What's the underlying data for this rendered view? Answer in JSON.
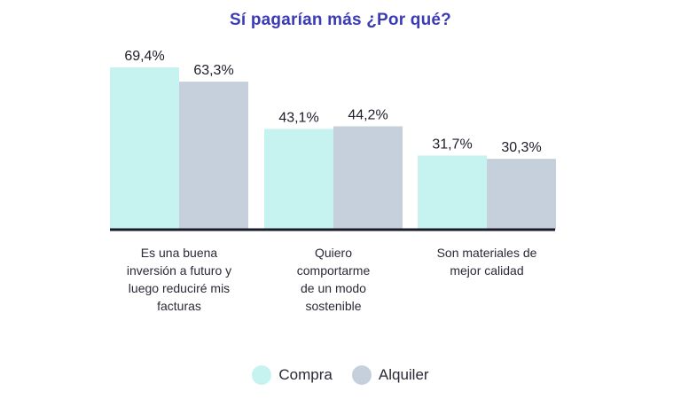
{
  "chart_data": {
    "type": "bar",
    "title": "Sí pagarían más ¿Por qué?",
    "categories": [
      [
        "Es una buena",
        "inversión a futuro y",
        "luego reduciré mis",
        "facturas"
      ],
      [
        "Quiero",
        "comportarme",
        "de un modo",
        "sostenible"
      ],
      [
        "Son materiales de",
        "mejor calidad"
      ]
    ],
    "series": [
      {
        "name": "Compra",
        "values": [
          69.4,
          43.1,
          31.7
        ],
        "labels": [
          "69,4%",
          "43,1%",
          "31,7%"
        ],
        "color": "#c6f3ef"
      },
      {
        "name": "Alquiler",
        "values": [
          63.3,
          44.2,
          30.3
        ],
        "labels": [
          "63,3%",
          "44,2%",
          "30,3%"
        ],
        "color": "#c6d0dc"
      }
    ],
    "ylim": [
      0,
      80
    ],
    "grid": false,
    "legend_position": "bottom-center",
    "axis_color": "#1a1a2a"
  }
}
